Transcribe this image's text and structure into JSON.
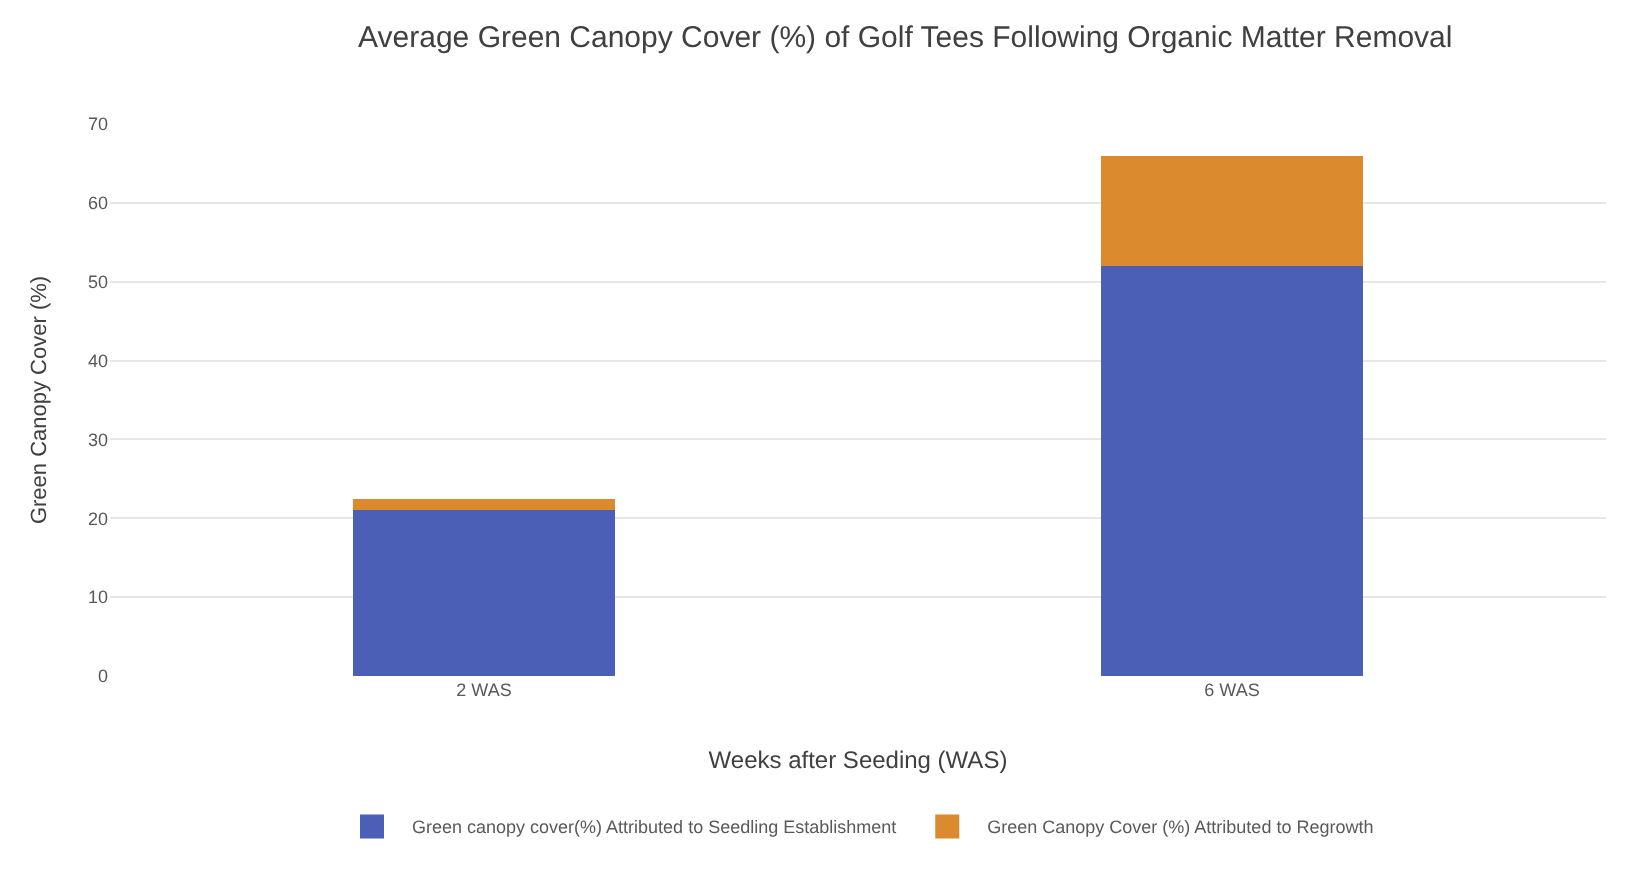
{
  "chart_data": {
    "type": "bar",
    "title": "Average Green Canopy Cover (%) of Golf Tees Following Organic Matter Removal",
    "xlabel": "Weeks after Seeding (WAS)",
    "ylabel": "Green Canopy Cover (%)",
    "categories": [
      "2 WAS",
      "6 WAS"
    ],
    "stacked": true,
    "series": [
      {
        "name": "Green canopy cover(%) Attributed to Seedling Establishment",
        "color": "#4a5fb5",
        "values": [
          21,
          52
        ]
      },
      {
        "name": "Green Canopy Cover (%) Attributed to Regrowth",
        "color": "#dc8a2e",
        "values": [
          1.5,
          14
        ]
      }
    ],
    "ylim": [
      0,
      70
    ],
    "yticks": [
      0,
      10,
      20,
      30,
      40,
      50,
      60,
      70
    ],
    "grid": "y",
    "legend": "bottom"
  }
}
